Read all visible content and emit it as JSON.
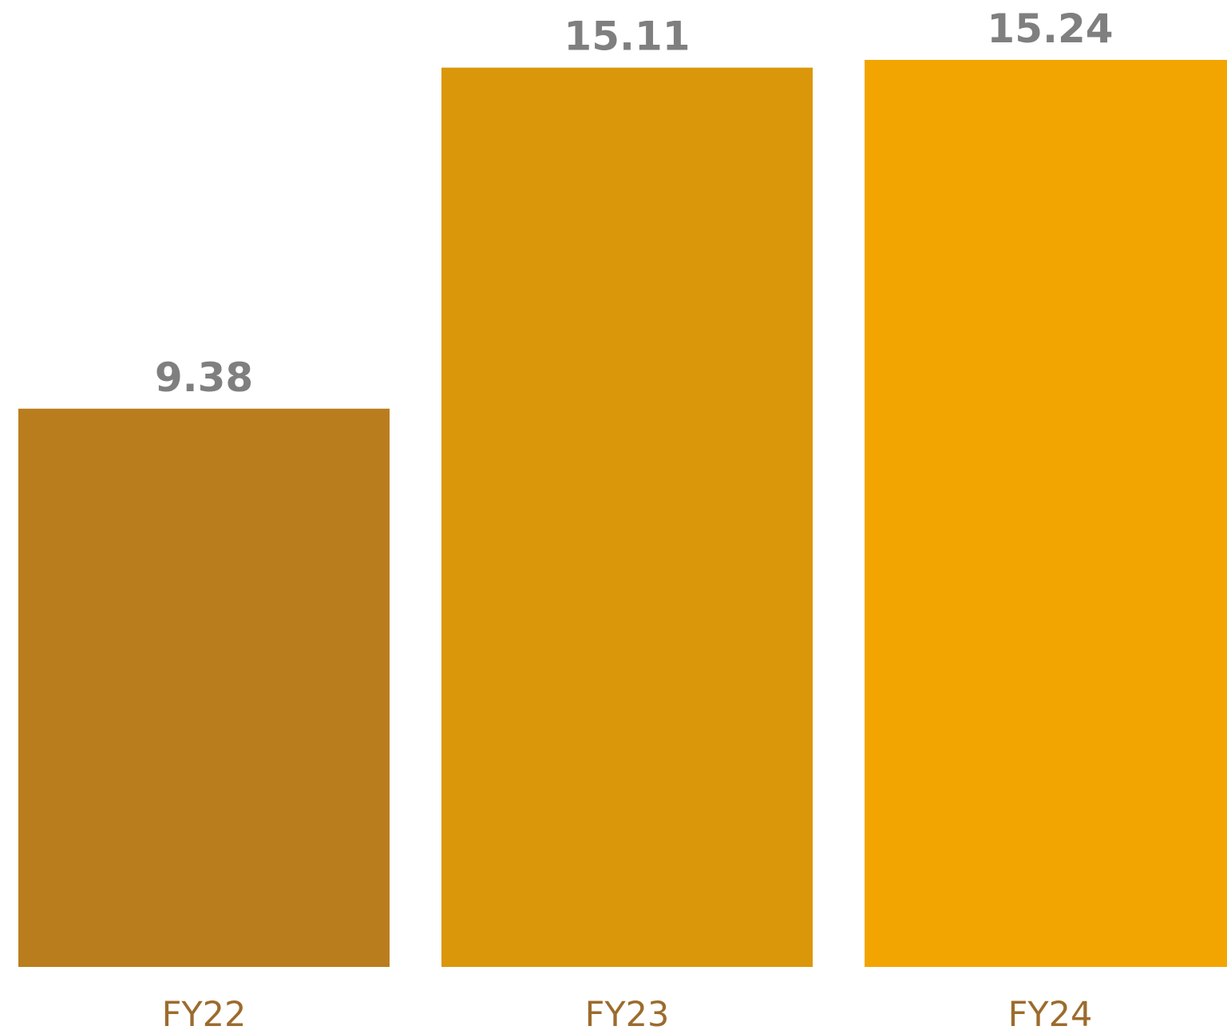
{
  "chart_data": {
    "type": "bar",
    "categories": [
      "FY22",
      "FY23",
      "FY24"
    ],
    "values": [
      9.38,
      15.11,
      15.24
    ],
    "data_labels": [
      "9.38",
      "15.11",
      "15.24"
    ],
    "colors": [
      "#BA7D1D",
      "#DB970A",
      "#F2A501"
    ],
    "title": "",
    "xlabel": "",
    "ylabel": "",
    "ylim": [
      0,
      15.24
    ],
    "grid": false,
    "legend": "none"
  }
}
